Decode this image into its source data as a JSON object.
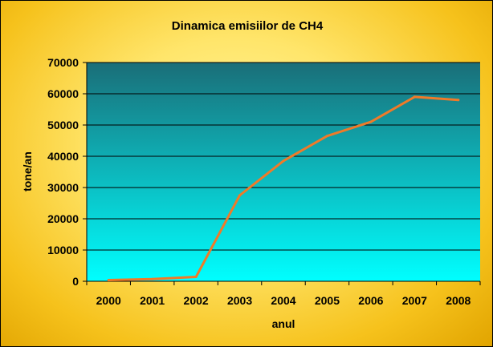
{
  "chart_data": {
    "type": "line",
    "title": "Dinamica emisiilor de CH4",
    "xlabel": "anul",
    "ylabel": "tone/an",
    "categories": [
      "2000",
      "2001",
      "2002",
      "2003",
      "2004",
      "2005",
      "2006",
      "2007",
      "2008"
    ],
    "series": [
      {
        "values": [
          400,
          700,
          1400,
          27500,
          38500,
          46500,
          51000,
          59000,
          58000
        ]
      }
    ],
    "ylim": [
      0,
      70000
    ],
    "yticks": [
      0,
      10000,
      20000,
      30000,
      40000,
      50000,
      60000,
      70000
    ],
    "grid": true,
    "legend": "none",
    "colors": {
      "line": "#f07a28",
      "plot_top": "#1a6e78",
      "plot_bottom": "#00ffff",
      "gridline": "#000000",
      "frame_outer": "#e1a400",
      "frame_inner": "#fff7a0"
    }
  }
}
